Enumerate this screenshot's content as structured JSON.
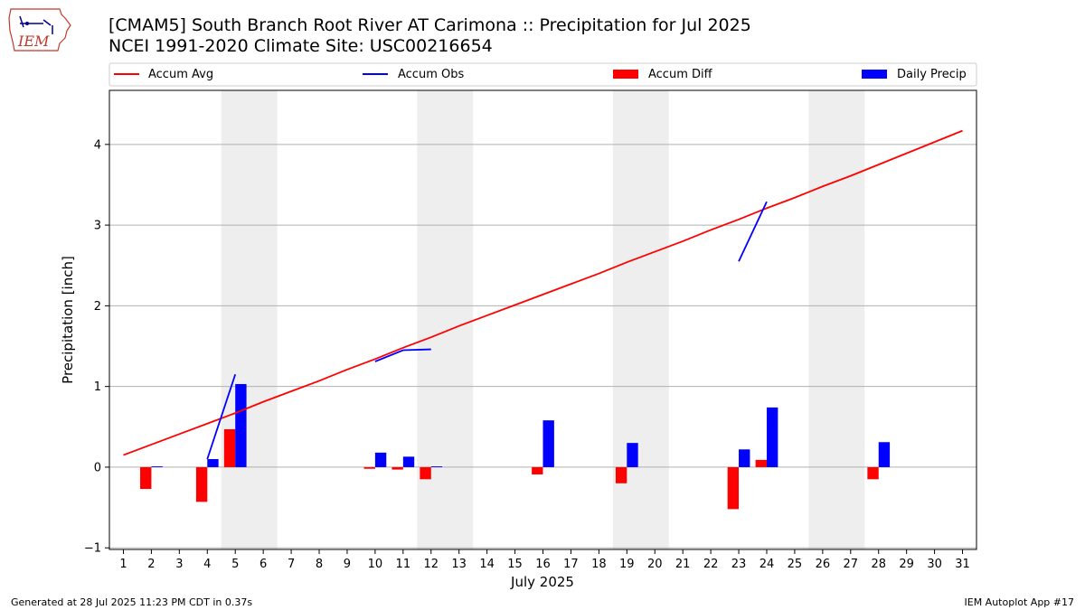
{
  "header": {
    "title": "[CMAM5] South Branch Root River  AT Carimona :: Precipitation for Jul 2025",
    "subtitle": "NCEI 1991-2020 Climate Site: USC00216654"
  },
  "logo": {
    "text": "IEM",
    "icon": "iowa-state-outline-icon"
  },
  "footer": {
    "left": "Generated at 28 Jul 2025 11:23 PM CDT in 0.37s",
    "right": "IEM Autoplot App #17"
  },
  "chart_data": {
    "type": "bar",
    "xlabel": "July 2025",
    "ylabel": "Precipitation [inch]",
    "xlim": [
      0.5,
      31.5
    ],
    "ylim": [
      -1.02,
      4.67
    ],
    "x_ticks": [
      1,
      2,
      3,
      4,
      5,
      6,
      7,
      8,
      9,
      10,
      11,
      12,
      13,
      14,
      15,
      16,
      17,
      18,
      19,
      20,
      21,
      22,
      23,
      24,
      25,
      26,
      27,
      28,
      29,
      30,
      31
    ],
    "y_ticks": [
      -1,
      0,
      1,
      2,
      3,
      4
    ],
    "grid": "y",
    "legend_placement": "top",
    "shaded_weekends": [
      [
        4.5,
        6.5
      ],
      [
        11.5,
        13.5
      ],
      [
        18.5,
        20.5
      ],
      [
        25.5,
        27.5
      ]
    ],
    "colors": {
      "accum_avg": "#ff0000",
      "accum_obs": "#0000ff",
      "accum_diff": "#ff0000",
      "daily_precip": "#0000ff",
      "weekend": "#eeeeee"
    },
    "legend": [
      "Accum Avg",
      "Accum Obs",
      "Accum Diff",
      "Daily Precip"
    ],
    "accum_avg": {
      "name": "Accum Avg",
      "x": [
        1,
        2,
        3,
        4,
        5,
        6,
        7,
        8,
        9,
        10,
        11,
        12,
        13,
        14,
        15,
        16,
        17,
        18,
        19,
        20,
        21,
        22,
        23,
        24,
        25,
        26,
        27,
        28,
        29,
        30,
        31
      ],
      "values": [
        0.15,
        0.28,
        0.41,
        0.54,
        0.67,
        0.81,
        0.94,
        1.07,
        1.21,
        1.34,
        1.48,
        1.61,
        1.75,
        1.88,
        2.01,
        2.14,
        2.27,
        2.4,
        2.54,
        2.67,
        2.8,
        2.94,
        3.07,
        3.21,
        3.34,
        3.48,
        3.61,
        3.75,
        3.89,
        4.03,
        4.17
      ]
    },
    "accum_obs": {
      "name": "Accum Obs",
      "segments": [
        {
          "x": [
            4,
            5
          ],
          "values": [
            0.1,
            1.15
          ]
        },
        {
          "x": [
            10,
            11,
            12
          ],
          "values": [
            1.31,
            1.45,
            1.46
          ]
        },
        {
          "x": [
            23,
            24
          ],
          "values": [
            2.55,
            3.29
          ]
        }
      ]
    },
    "accum_diff": {
      "name": "Accum Diff",
      "x": [
        2,
        4,
        5,
        10,
        11,
        12,
        16,
        19,
        23,
        24,
        28
      ],
      "values": [
        -0.27,
        -0.43,
        0.47,
        -0.02,
        -0.03,
        -0.15,
        -0.09,
        -0.2,
        -0.52,
        0.09,
        -0.15
      ]
    },
    "daily_precip": {
      "name": "Daily Precip",
      "x": [
        2,
        4,
        5,
        10,
        11,
        12,
        16,
        19,
        23,
        24,
        28
      ],
      "values": [
        0.01,
        0.1,
        1.03,
        0.18,
        0.13,
        0.01,
        0.58,
        0.3,
        0.22,
        0.74,
        0.31
      ]
    }
  }
}
